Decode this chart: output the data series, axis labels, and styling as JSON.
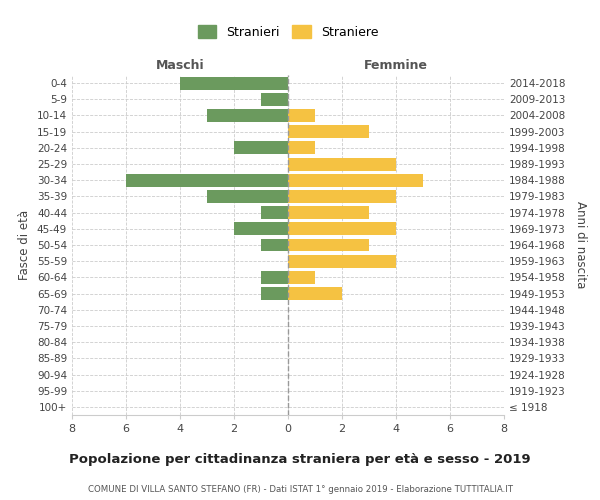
{
  "age_groups": [
    "100+",
    "95-99",
    "90-94",
    "85-89",
    "80-84",
    "75-79",
    "70-74",
    "65-69",
    "60-64",
    "55-59",
    "50-54",
    "45-49",
    "40-44",
    "35-39",
    "30-34",
    "25-29",
    "20-24",
    "15-19",
    "10-14",
    "5-9",
    "0-4"
  ],
  "birth_years": [
    "≤ 1918",
    "1919-1923",
    "1924-1928",
    "1929-1933",
    "1934-1938",
    "1939-1943",
    "1944-1948",
    "1949-1953",
    "1954-1958",
    "1959-1963",
    "1964-1968",
    "1969-1973",
    "1974-1978",
    "1979-1983",
    "1984-1988",
    "1989-1993",
    "1994-1998",
    "1999-2003",
    "2004-2008",
    "2009-2013",
    "2014-2018"
  ],
  "maschi": [
    0,
    0,
    0,
    0,
    0,
    0,
    0,
    1,
    1,
    0,
    1,
    2,
    1,
    3,
    6,
    0,
    2,
    0,
    3,
    1,
    4
  ],
  "femmine": [
    0,
    0,
    0,
    0,
    0,
    0,
    0,
    2,
    1,
    4,
    3,
    4,
    3,
    4,
    5,
    4,
    1,
    3,
    1,
    0,
    0
  ],
  "color_maschi": "#6b9a5e",
  "color_femmine": "#f5c242",
  "background_color": "#ffffff",
  "grid_color": "#cccccc",
  "title": "Popolazione per cittadinanza straniera per età e sesso - 2019",
  "subtitle": "COMUNE DI VILLA SANTO STEFANO (FR) - Dati ISTAT 1° gennaio 2019 - Elaborazione TUTTITALIA.IT",
  "xlabel_left": "Maschi",
  "xlabel_right": "Femmine",
  "ylabel_left": "Fasce di età",
  "ylabel_right": "Anni di nascita",
  "legend_stranieri": "Stranieri",
  "legend_straniere": "Straniere",
  "xlim": 8,
  "bar_height": 0.8
}
